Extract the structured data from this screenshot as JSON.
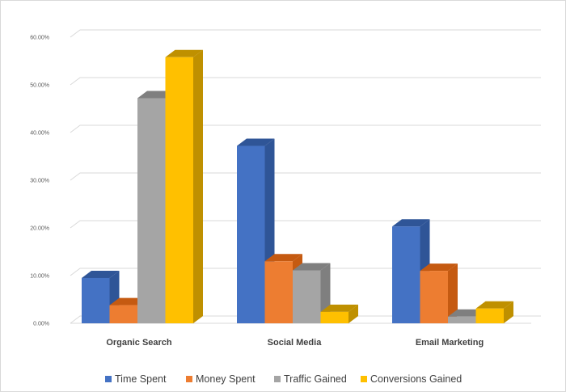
{
  "chart_data": {
    "type": "bar",
    "categories": [
      "Organic Search",
      "Social Media",
      "Email Marketing"
    ],
    "series": [
      {
        "name": "Time Spent",
        "values": [
          9.5,
          37.2,
          20.3
        ],
        "color": "#4472C4",
        "side": "#2F5597",
        "top": "#2F5597"
      },
      {
        "name": "Money Spent",
        "values": [
          3.8,
          13.0,
          11.0
        ],
        "color": "#ED7D31",
        "side": "#C55A11",
        "top": "#C55A11"
      },
      {
        "name": "Traffic Gained",
        "values": [
          47.2,
          11.1,
          1.4
        ],
        "color": "#A5A5A5",
        "side": "#7F7F7F",
        "top": "#7F7F7F"
      },
      {
        "name": "Conversions Gained",
        "values": [
          55.8,
          2.4,
          3.1
        ],
        "color": "#FFC000",
        "side": "#BF9000",
        "top": "#BF9000"
      }
    ],
    "yticks": [
      "0.00%",
      "10.00%",
      "20.00%",
      "30.00%",
      "40.00%",
      "50.00%",
      "60.00%"
    ],
    "ylim": [
      0,
      60
    ],
    "grid": true,
    "legend_position": "bottom",
    "style": "3d-column"
  }
}
